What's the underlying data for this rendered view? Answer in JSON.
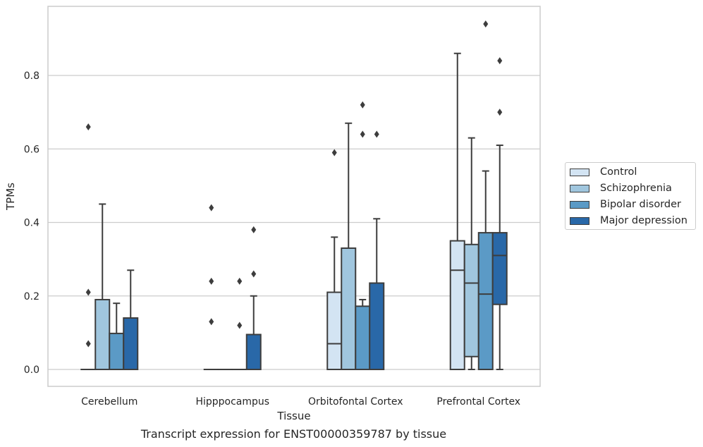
{
  "chart_data": {
    "type": "box",
    "xlabel": "Tissue",
    "ylabel": "TPMs",
    "ylim": [
      -0.046,
      0.986
    ],
    "yticks": [
      0.0,
      0.2,
      0.4,
      0.6,
      0.8
    ],
    "ytick_labels": [
      "0.0",
      "0.2",
      "0.4",
      "0.6",
      "0.8"
    ],
    "grid": "horizontal",
    "legend_position": "right",
    "categories": [
      "Cerebellum",
      "Hipppocampus",
      "Orbitofontal Cortex",
      "Prefrontal Cortex"
    ],
    "series": [
      {
        "name": "Control",
        "color": "#d3e4f3",
        "boxes": [
          {
            "q1": 0,
            "median": 0,
            "q3": 0,
            "whisker_low": 0,
            "whisker_high": 0,
            "outliers": [
              0.66,
              0.21,
              0.07
            ]
          },
          {
            "q1": 0,
            "median": 0,
            "q3": 0,
            "whisker_low": 0,
            "whisker_high": 0,
            "outliers": [
              0.44,
              0.24,
              0.13
            ]
          },
          {
            "q1": 0,
            "median": 0.07,
            "q3": 0.21,
            "whisker_low": 0,
            "whisker_high": 0.36,
            "outliers": [
              0.59
            ]
          },
          {
            "q1": 0,
            "median": 0.27,
            "q3": 0.35,
            "whisker_low": 0,
            "whisker_high": 0.86,
            "outliers": []
          }
        ]
      },
      {
        "name": "Schizophrenia",
        "color": "#a0c6de",
        "boxes": [
          {
            "q1": 0,
            "median": 0,
            "q3": 0.19,
            "whisker_low": 0,
            "whisker_high": 0.45,
            "outliers": []
          },
          {
            "q1": 0,
            "median": 0,
            "q3": 0,
            "whisker_low": 0,
            "whisker_high": 0,
            "outliers": []
          },
          {
            "q1": 0,
            "median": 0,
            "q3": 0.33,
            "whisker_low": 0,
            "whisker_high": 0.67,
            "outliers": []
          },
          {
            "q1": 0.035,
            "median": 0.235,
            "q3": 0.34,
            "whisker_low": 0,
            "whisker_high": 0.63,
            "outliers": []
          }
        ]
      },
      {
        "name": "Bipolar disorder",
        "color": "#5b9ac6",
        "boxes": [
          {
            "q1": 0,
            "median": 0,
            "q3": 0.098,
            "whisker_low": 0,
            "whisker_high": 0.18,
            "outliers": []
          },
          {
            "q1": 0,
            "median": 0,
            "q3": 0,
            "whisker_low": 0,
            "whisker_high": 0,
            "outliers": [
              0.24,
              0.12
            ]
          },
          {
            "q1": 0,
            "median": 0,
            "q3": 0.172,
            "whisker_low": 0,
            "whisker_high": 0.19,
            "outliers": [
              0.72,
              0.64
            ]
          },
          {
            "q1": 0,
            "median": 0.205,
            "q3": 0.372,
            "whisker_low": 0,
            "whisker_high": 0.54,
            "outliers": [
              0.94
            ]
          }
        ]
      },
      {
        "name": "Major depression",
        "color": "#2968a8",
        "boxes": [
          {
            "q1": 0,
            "median": 0,
            "q3": 0.14,
            "whisker_low": 0,
            "whisker_high": 0.27,
            "outliers": []
          },
          {
            "q1": 0,
            "median": 0,
            "q3": 0.095,
            "whisker_low": 0,
            "whisker_high": 0.2,
            "outliers": [
              0.38,
              0.26
            ]
          },
          {
            "q1": 0,
            "median": 0,
            "q3": 0.235,
            "whisker_low": 0,
            "whisker_high": 0.41,
            "outliers": [
              0.64
            ]
          },
          {
            "q1": 0.177,
            "median": 0.31,
            "q3": 0.372,
            "whisker_low": 0,
            "whisker_high": 0.61,
            "outliers": [
              0.84,
              0.7
            ]
          }
        ]
      }
    ]
  },
  "caption": "Transcript expression for ENST00000359787 by tissue",
  "colors": {
    "grid": "#cccccc",
    "axes_edge": "#cccccc",
    "line": "#3d3d3d",
    "text": "#262626"
  }
}
